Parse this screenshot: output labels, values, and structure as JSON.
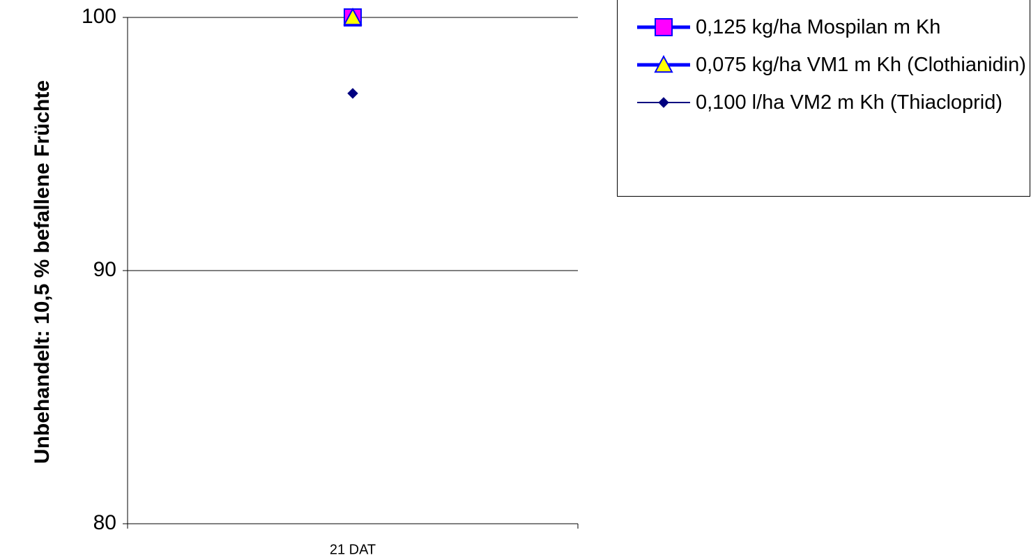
{
  "chart_data": {
    "type": "line",
    "y_label": "Unbehandelt: 10,5 % befallene Früchte",
    "categories": [
      "21 DAT"
    ],
    "series": [
      {
        "name": "0,125 kg/ha Mospilan m Kh",
        "color": "#0000ff",
        "line_width": 5,
        "marker": "square",
        "marker_color": "#ff00ff",
        "values": [
          100
        ]
      },
      {
        "name": "0,075 kg/ha VM1 m Kh (Clothianidin)",
        "color": "#0000ff",
        "line_width": 5,
        "marker": "triangle",
        "marker_color": "#ffff00",
        "values": [
          100
        ]
      },
      {
        "name": "0,100 l/ha VM2 m Kh (Thiacloprid)",
        "color": "#000080",
        "line_width": 2,
        "marker": "diamond",
        "marker_color": "#000080",
        "values": [
          97
        ]
      }
    ],
    "ylim": [
      80,
      100
    ],
    "yticks": [
      80,
      90,
      100
    ],
    "grid": true,
    "legend": "right"
  }
}
